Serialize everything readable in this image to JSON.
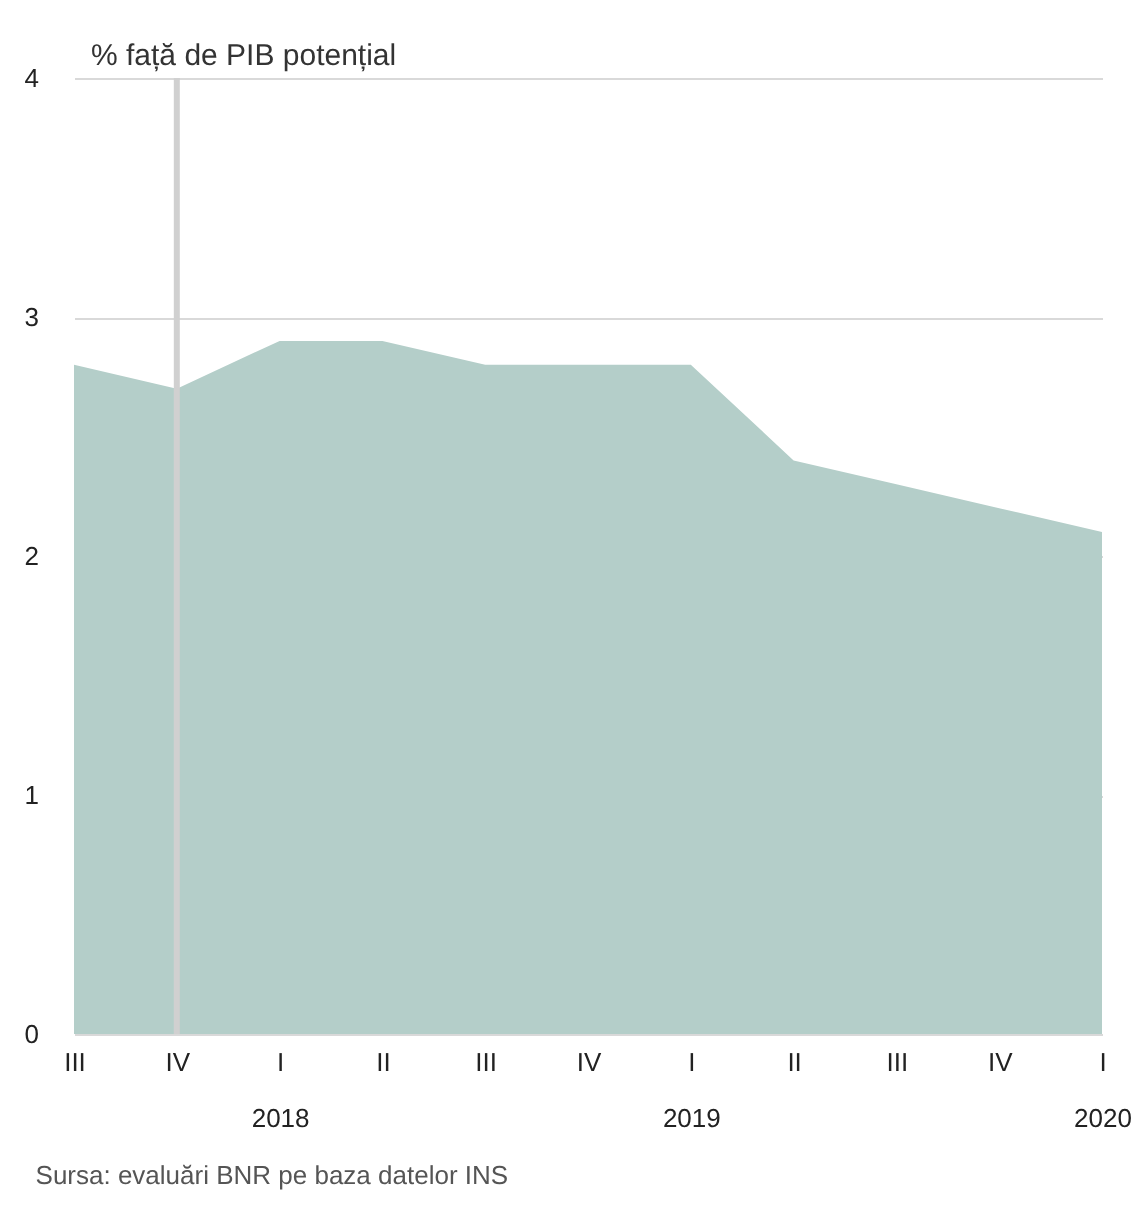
{
  "chart_data": {
    "type": "area",
    "ylabel": "% față de PIB potențial",
    "categories": [
      "III",
      "IV",
      "I\n2018",
      "II",
      "III",
      "IV",
      "I\n2019",
      "II",
      "III",
      "IV",
      "I\n2020"
    ],
    "values": [
      2.8,
      2.7,
      2.9,
      2.9,
      2.8,
      2.8,
      2.8,
      2.4,
      2.3,
      2.2,
      2.1
    ],
    "color": "#b4cec9",
    "ylim": [
      0,
      4
    ],
    "yticks": [
      0,
      1,
      2,
      3,
      4
    ],
    "grid": "y",
    "ref_lines": [
      {
        "axis": "x",
        "value": "IV",
        "color": "#d0d0d0"
      }
    ],
    "annotations": [
      "Sursa: evaluări BNR pe baza datelor INS"
    ]
  }
}
